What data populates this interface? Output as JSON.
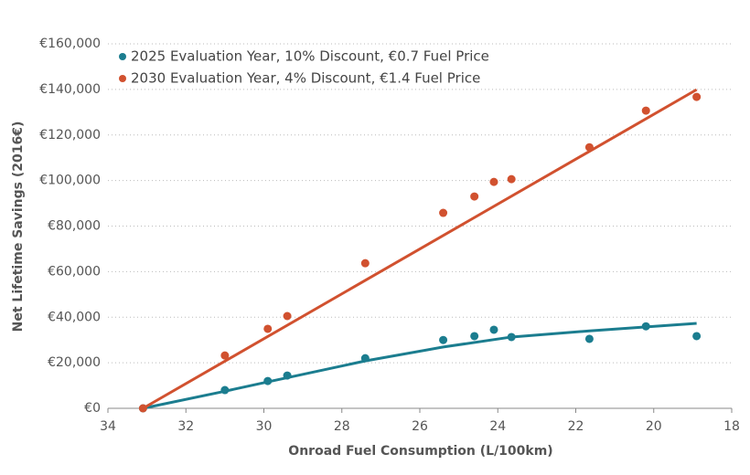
{
  "chart_data": {
    "type": "scatter",
    "xlabel": "Onroad Fuel Consumption (L/100km)",
    "ylabel": "Net Lifetime Savings (2016€)",
    "xlim": [
      34,
      18
    ],
    "xticks": [
      34,
      32,
      30,
      28,
      26,
      24,
      22,
      20,
      18
    ],
    "ylim": [
      0,
      160000
    ],
    "yticks": [
      {
        "value": 0,
        "label": "€0"
      },
      {
        "value": 20000,
        "label": "€20,000"
      },
      {
        "value": 40000,
        "label": "€40,000"
      },
      {
        "value": 60000,
        "label": "€60,000"
      },
      {
        "value": 80000,
        "label": "€80,000"
      },
      {
        "value": 100000,
        "label": "€100,000"
      },
      {
        "value": 120000,
        "label": "€120,000"
      },
      {
        "value": 140000,
        "label": "€140,000"
      },
      {
        "value": 160000,
        "label": "€160,000"
      }
    ],
    "grid": true,
    "legend": "top-left",
    "series": [
      {
        "name": "2025 Evaluation Year, 10% Discount, €0.7 Fuel Price",
        "color": "#1b7d8f",
        "x": [
          33.1,
          31.0,
          29.9,
          29.4,
          27.4,
          25.4,
          24.6,
          24.1,
          23.65,
          21.65,
          20.2,
          18.9
        ],
        "values": [
          0,
          8000,
          12000,
          14400,
          22000,
          30000,
          31700,
          34500,
          31300,
          30500,
          36000,
          31700
        ],
        "trend": {
          "x": [
            33.1,
            31.0,
            29.9,
            27.4,
            25.4,
            23.65,
            21.65,
            18.9
          ],
          "values": [
            0,
            7500,
            11600,
            20800,
            26900,
            31300,
            34000,
            37300
          ]
        }
      },
      {
        "name": "2030 Evaluation Year, 4% Discount, €1.4 Fuel Price",
        "color": "#d1512f",
        "x": [
          33.1,
          31.0,
          29.9,
          29.4,
          27.4,
          25.4,
          24.6,
          24.1,
          23.65,
          21.65,
          20.2,
          18.9
        ],
        "values": [
          0,
          23200,
          34900,
          40500,
          63700,
          85800,
          93000,
          99400,
          100600,
          114600,
          130700,
          136700
        ],
        "trend": {
          "x": [
            33.1,
            18.9
          ],
          "values": [
            0,
            139900
          ]
        }
      }
    ]
  }
}
